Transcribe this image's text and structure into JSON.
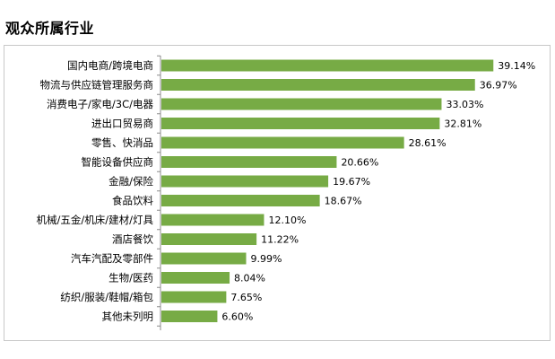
{
  "page": {
    "title": "观众所属行业"
  },
  "chart_data": {
    "type": "bar",
    "orientation": "horizontal",
    "title": "",
    "xlabel": "",
    "ylabel": "",
    "grid": false,
    "bar_color": "#77ab45",
    "categories": [
      "国内电商/跨境电商",
      "物流与供应链管理服务商",
      "消费电子/家电/3C/电器",
      "进出口贸易商",
      "零售、快消品",
      "智能设备供应商",
      "金融/保险",
      "食品饮料",
      "机械/五金/机床/建材/灯具",
      "酒店餐饮",
      "汽车汽配及零部件",
      "生物/医药",
      "纺织/服装/鞋帽/箱包",
      "其他未列明"
    ],
    "values": [
      39.14,
      36.97,
      33.03,
      32.81,
      28.61,
      20.66,
      19.67,
      18.67,
      12.1,
      11.22,
      9.99,
      8.04,
      7.65,
      6.6
    ],
    "value_labels": [
      "39.14%",
      "36.97%",
      "33.03%",
      "32.81%",
      "28.61%",
      "20.66%",
      "19.67%",
      "18.67%",
      "12.10%",
      "11.22%",
      "9.99%",
      "8.04%",
      "7.65%",
      "6.60%"
    ]
  }
}
